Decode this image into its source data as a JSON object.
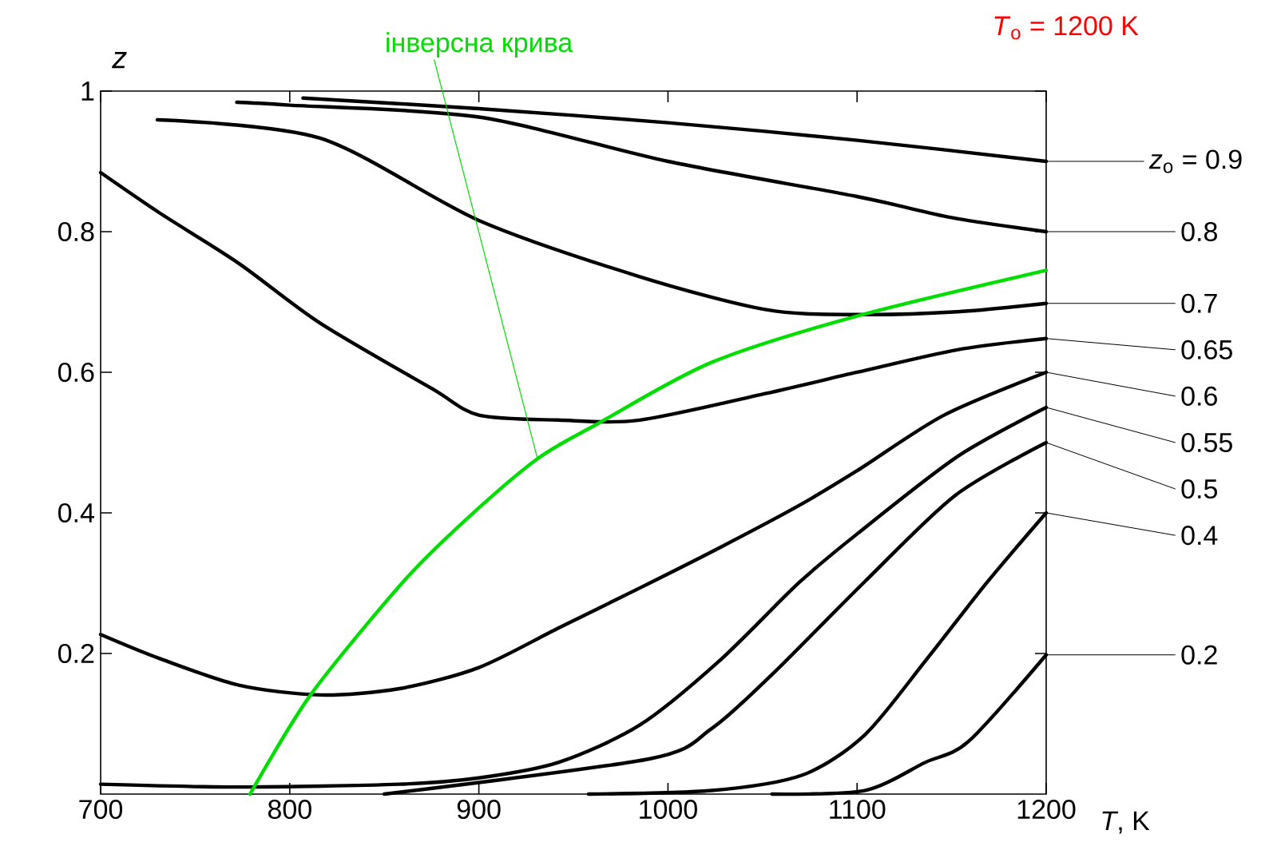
{
  "chart_data": {
    "type": "line",
    "legend": "right",
    "xlabel": "*T*, K",
    "ylabel": "*z*",
    "xlim": [
      700,
      1200
    ],
    "ylim": [
      0,
      1
    ],
    "xticks": [
      700,
      800,
      900,
      1000,
      1100,
      1200
    ],
    "yticks": [
      0.2,
      0.4,
      0.6,
      0.8,
      1
    ],
    "annotations": [
      {
        "text": "інверсна крива",
        "x": 931,
        "y": 0.477
      },
      "*T*$_{o}$ = 1200 K"
    ],
    "series": [
      {
        "name": "*z*$_{o}$ = 0.9",
        "color": "#000000",
        "x": [
          807,
          900,
          1000,
          1100,
          1200
        ],
        "values": [
          0.99,
          0.975,
          0.955,
          0.93,
          0.9
        ]
      },
      {
        "name": "0.8",
        "color": "#000000",
        "x": [
          772,
          800,
          900,
          1000,
          1100,
          1150,
          1200
        ],
        "values": [
          0.984,
          0.98,
          0.963,
          0.9,
          0.85,
          0.82,
          0.8
        ]
      },
      {
        "name": "0.7",
        "color": "#000000",
        "x": [
          730,
          816,
          900,
          985,
          1052,
          1100,
          1153,
          1200
        ],
        "values": [
          0.959,
          0.933,
          0.816,
          0.736,
          0.689,
          0.682,
          0.686,
          0.698
        ]
      },
      {
        "name": "0.65",
        "color": "#000000",
        "x": [
          700,
          731,
          773,
          816,
          875,
          900,
          942,
          985,
          1052,
          1100,
          1153,
          1200
        ],
        "values": [
          0.884,
          0.827,
          0.755,
          0.67,
          0.577,
          0.539,
          0.532,
          0.532,
          0.57,
          0.6,
          0.632,
          0.648
        ]
      },
      {
        "name": "0.6",
        "color": "#000000",
        "x": [
          700,
          731,
          773,
          816,
          858,
          900,
          942,
          985,
          1027,
          1069,
          1100,
          1146,
          1200
        ],
        "values": [
          0.227,
          0.193,
          0.155,
          0.141,
          0.15,
          0.18,
          0.236,
          0.293,
          0.35,
          0.41,
          0.46,
          0.539,
          0.6
        ]
      },
      {
        "name": "0.55",
        "color": "#000000",
        "x": [
          700,
          773,
          858,
          900,
          942,
          985,
          1027,
          1069,
          1100,
          1153,
          1200
        ],
        "values": [
          0.014,
          0.01,
          0.014,
          0.023,
          0.045,
          0.098,
          0.189,
          0.3,
          0.37,
          0.48,
          0.55
        ]
      },
      {
        "name": "0.5",
        "color": "#000000",
        "x": [
          850,
          990,
          1023,
          1055,
          1104,
          1152,
          1200
        ],
        "values": [
          0.0,
          0.05,
          0.093,
          0.17,
          0.302,
          0.425,
          0.5
        ]
      },
      {
        "name": "0.4",
        "color": "#000000",
        "x": [
          958,
          1023,
          1071,
          1104,
          1136,
          1169,
          1200
        ],
        "values": [
          0.0,
          0.005,
          0.027,
          0.084,
          0.189,
          0.302,
          0.4
        ]
      },
      {
        "name": "0.2",
        "color": "#000000",
        "x": [
          1055,
          1104,
          1136,
          1159,
          1200
        ],
        "values": [
          0.0,
          0.005,
          0.045,
          0.075,
          0.198
        ]
      },
      {
        "color": "#00dd00",
        "x": [
          779,
          811,
          860,
          893,
          931,
          963,
          1023,
          1100,
          1200
        ],
        "values": [
          0.0,
          0.141,
          0.302,
          0.39,
          0.477,
          0.527,
          0.614,
          0.68,
          0.745
        ]
      }
    ]
  }
}
